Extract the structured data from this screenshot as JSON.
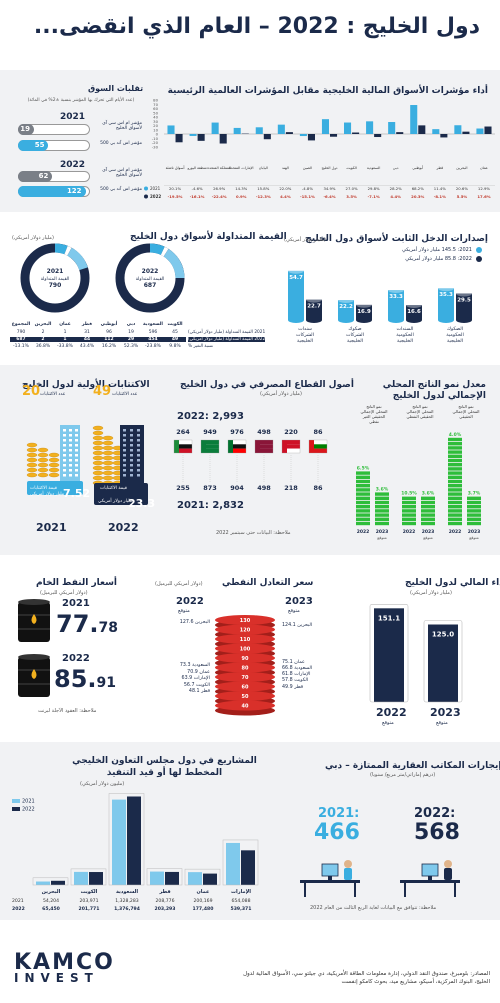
{
  "header": {
    "title": "دول الخليج : 2022 – العام الذي انقضى..."
  },
  "indices": {
    "title": "أداء مؤشرات الأسواق المالية الخليجية مقابل المؤشرات العالمية الرئيسية",
    "legend_2021": "2021",
    "legend_2022": "2022",
    "chart_data": {
      "type": "bar",
      "categories": [
        "عمان",
        "البحرين",
        "قطر",
        "أبوظبي",
        "دبي",
        "السعودية",
        "الكويت",
        "دول الخليج",
        "الصين",
        "الهند",
        "اليابان",
        "الإمارات المتحدة",
        "المملكة المتحدة",
        "منطقة اليورو",
        "أسواق ناشئة"
      ],
      "series": [
        {
          "name": "2021",
          "values": [
            12.9,
            20.6,
            11.4,
            68.2,
            28.2,
            29.8,
            27.0,
            34.9,
            -4.8,
            22.0,
            15.8,
            14.3,
            26.9,
            -4.6,
            20.1
          ]
        },
        {
          "name": "2022",
          "values": [
            17.6,
            5.5,
            -8.1,
            20.3,
            4.4,
            -7.1,
            3.5,
            -6.4,
            -15.1,
            4.4,
            -12.3,
            0.9,
            -22.4,
            -16.1,
            -19.5
          ]
        }
      ],
      "row_labels": [
        "2021",
        "2022"
      ],
      "values_2021_text": [
        "12.9%",
        "20.6%",
        "11.4%",
        "68.2%",
        "28.2%",
        "29.8%",
        "27.0%",
        "34.9%",
        "-4.8%",
        "22.0%",
        "15.8%",
        "14.3%",
        "26.9%",
        "-4.6%",
        "20.1%"
      ],
      "values_2022_text": [
        "17.6%",
        "5.5%",
        "-8.1%",
        "20.3%",
        "4.4%",
        "-7.1%",
        "3.5%",
        "-6.4%",
        "-15.1%",
        "4.4%",
        "-12.3%",
        "0.9%",
        "-22.4%",
        "-16.1%",
        "-19.5%"
      ],
      "yticks": [
        "80",
        "70",
        "60",
        "50",
        "40",
        "30",
        "20",
        "10",
        "0",
        "-10",
        "-20",
        "-30"
      ],
      "ylim": [
        -30,
        80
      ]
    }
  },
  "volatility": {
    "title": "تقلبات السوق",
    "subtitle": "(عدد الأيام التي تحرك بها المؤشر بنسبة ±2% في المائة)",
    "y2021": "2021",
    "y2022": "2022",
    "label_gcc": "مؤشر ام اس سي آي لأسواق الخليج",
    "label_sp": "مؤشر اس آند بي 500",
    "v2021_gcc": 19,
    "v2021_sp": 55,
    "v2022_gcc": 62,
    "v2022_sp": 122
  },
  "mcap": {
    "title": "القيمة المتداولة لأسواق دول الخليج",
    "unit": "(مليار دولار أمريكي)",
    "donut_2021": {
      "year": "2021",
      "label": "القيمة المتداولة",
      "value": "790"
    },
    "donut_2022": {
      "year": "2022",
      "label": "القيمة المتداولة",
      "value": "687"
    },
    "headers": [
      "الكويت",
      "السعودية",
      "دبي",
      "أبوظبي",
      "قطر",
      "عمان",
      "البحرين",
      "المجموع"
    ],
    "row_2021_label": "2021 القيمة المتداولة (مليار دولار أمريكي)",
    "row_2022_label": "2022 القيمة المتداولة (مليار دولار أمريكي)",
    "row_pct_label": "نسبة التغير %",
    "row_2021": [
      "45",
      "596",
      "19",
      "96",
      "31",
      "1",
      "2",
      "790"
    ],
    "row_2022": [
      "49",
      "454",
      "29",
      "112",
      "44",
      "1",
      "2",
      "687"
    ],
    "row_pct": [
      "9.8%",
      "-23.8%",
      "52.3%",
      "16.2%",
      "43.4%",
      "-33.8%",
      "36.8%",
      "-13.1%"
    ]
  },
  "fixed_income": {
    "title": "إصدارات الدخل الثابت لأسواق دول الخليج",
    "unit": "(مليار دولار أمريكي)",
    "legend_2021": "2021: 145.5 مليار دولار أمريكي",
    "legend_2022": "2022: 85.8 مليار دولار أمريكي",
    "chart_data": {
      "type": "bar",
      "categories": [
        "الصكوك الحكومية الخليجية",
        "السندات الحكومية الخليجية",
        "صكوك الشركات الخليجية",
        "سندات الشركات الخليجية"
      ],
      "series": [
        {
          "name": "2021",
          "values": [
            35.3,
            33.3,
            22.2,
            54.7
          ]
        },
        {
          "name": "2022",
          "values": [
            29.5,
            16.6,
            16.9,
            22.7
          ]
        }
      ]
    }
  },
  "ipo": {
    "title": "الاكتتابات الأولية لدول الخليج",
    "count_label": "عدد الاكتتابات",
    "value_label": "قيمة الاكتتابات",
    "value_unit": "مليار دولار أمريكي",
    "y2021": "2021",
    "count_2021": "20",
    "value_2021": "7.52",
    "y2022": "2022",
    "count_2022": "49",
    "value_2022": "23.3"
  },
  "bank": {
    "title": "أصول القطاع المصرفي في دول الخليج",
    "unit": "(مليار دولار أمريكي)",
    "total_2022": "2022: 2,993",
    "total_2021": "2021: 2,832",
    "top": [
      "264",
      "949",
      "976",
      "498",
      "220",
      "86"
    ],
    "bottom": [
      "255",
      "873",
      "904",
      "498",
      "218",
      "86"
    ],
    "note": "ملاحظة: البيانات حتى سبتمبر 2022"
  },
  "gdp": {
    "title": "معدل نمو الناتج المحلي الإجمالي لدول الخليج",
    "labels": [
      "نمو الناتج المحلي الإجمالي الحقيقي النفطي",
      "نمو الناتج المحلي الإجمالي الحقيقي",
      "نمو الناتج المحلي الإجمالي الحقيقي الغير نفطي"
    ],
    "chart_data": {
      "type": "bar",
      "categories": [
        "2022",
        "2023 متوقع"
      ],
      "series": [
        {
          "name": "نمو الناتج المحلي الإجمالي الحقيقي النفطي",
          "values": [
            3.6,
            3.6
          ]
        },
        {
          "name": "نمو الناتج المحلي الإجمالي الحقيقي",
          "values": [
            10.5,
            3.7
          ]
        },
        {
          "name": "نمو الناتج المحلي الإجمالي الحقيقي الغير نفطي",
          "values": [
            6.5,
            4.0
          ]
        }
      ]
    },
    "value_texts": [
      "6.5%",
      "3.6%",
      "10.5%",
      "3.6%",
      "4.0%",
      "3.7%"
    ],
    "x_labels": [
      "2022",
      "متوقع 2023",
      "2022",
      "متوقع 2023",
      "2022",
      "متوقع 2023"
    ]
  },
  "oil": {
    "title": "أسعار النفط الخام",
    "unit": "(دولار أمريكي للبرميل)",
    "y2021": "2021",
    "v2021_int": "77.",
    "v2021_dec": "78",
    "y2022": "2022",
    "v2022_int": "85.",
    "v2022_dec": "91",
    "note": "ملاحظة: العقود الآجلة لبرنت"
  },
  "breakeven": {
    "title": "سعر التعادل النفطي",
    "unit": "(دولار أمريكي للبرميل)",
    "h2022": "2022",
    "h2022_sub": "متوقع",
    "h2023": "2023",
    "h2023_sub": "متوقع",
    "left": [
      "البحرين 127.6",
      "السعودية 73.3",
      "عمان 70.9",
      "الإمارات 63.9",
      "الكويت 56.7",
      "قطر 48.1"
    ],
    "right": [
      "البحرين 124.1",
      "عمان 75.1",
      "السعودية 66.8",
      "الإمارات 61.8",
      "الكويت 57.8",
      "قطر 49.9"
    ],
    "scale": [
      "130",
      "120",
      "110",
      "100",
      "90",
      "80",
      "70",
      "60",
      "50",
      "40"
    ]
  },
  "fiscal": {
    "title": "الأداء المالي لدول الخليج",
    "unit": "(مليار دولار أمريكي)",
    "chart_data": {
      "type": "bar",
      "categories": [
        "2022",
        "2023 متوقع"
      ],
      "values": [
        151.1,
        125.0
      ]
    },
    "v2022": "151.1",
    "v2023": "125.0",
    "y2022": "2022",
    "y2022_sub": "متوقع",
    "y2023": "2023",
    "y2023_sub": "متوقع"
  },
  "projects": {
    "title": "المشاريع في دول مجلس التعاون الخليجي المخطط لها أو قيد التنفيذ",
    "unit": "(مليون دولار أمريكي)",
    "legend_2021": "2021",
    "legend_2022": "2022",
    "chart_data": {
      "type": "bar",
      "categories": [
        "الإمارات",
        "عمان",
        "قطر",
        "السعودية",
        "الكويت",
        "البحرين"
      ],
      "series": [
        {
          "name": "2021",
          "values": [
            654088,
            200169,
            208776,
            1328283,
            203971,
            54204
          ]
        },
        {
          "name": "2022",
          "values": [
            539371,
            177480,
            203293,
            1376794,
            201771,
            65450
          ]
        }
      ]
    },
    "row_2021": [
      "654,088",
      "200,169",
      "208,776",
      "1,328,283",
      "203,971",
      "54,204"
    ],
    "row_2022": [
      "539,371",
      "177,480",
      "203,293",
      "1,376,794",
      "201,771",
      "65,450"
    ]
  },
  "rent": {
    "title": "إيجارات المكاتب العقارية الممتازة – دبي",
    "unit": "(درهم إماراتي/متر مربع/ سنويا)",
    "y2021": "2021:",
    "v2021": "466",
    "y2022": "2022:",
    "v2022": "568",
    "note": "ملاحظة: تتوافق مع البيانات لغاية الربع الثالث من العام 2022"
  },
  "footer": {
    "logo1": "KAMCO",
    "logo2": "INVEST",
    "source": "المصادر: بلومبرغ، صندوق النقد الدولي، إدارة معلومات الطاقة الأمريكية، دي جيلتو سي، الأسواق المالية لدول الخليج، البنوك المركزية، أسيكو، مشاريع ميد، بحوث كامكو إنفست"
  },
  "colors": {
    "navy": "#1b2a4a",
    "light": "#3aaee0",
    "green": "#2ebd3a",
    "gold": "#f2b01e",
    "red": "#d9302a"
  }
}
